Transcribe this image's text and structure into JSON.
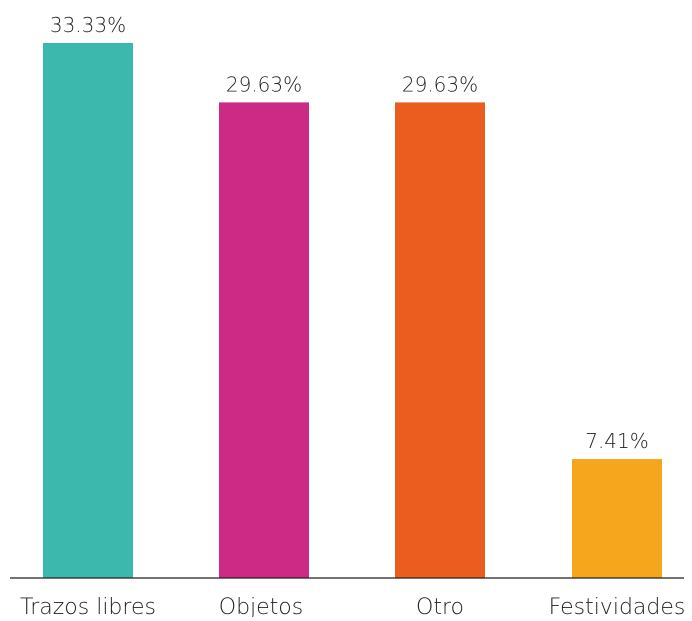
{
  "chart_data": {
    "type": "bar",
    "categories": [
      "Trazos libres",
      "Objetos",
      "Otro",
      "Festividades"
    ],
    "values": [
      33.33,
      29.63,
      29.63,
      7.41
    ],
    "value_labels": [
      "33.33%",
      "29.63%",
      "29.63%",
      "7.41%"
    ],
    "colors": [
      "#3cb8ad",
      "#cd2a85",
      "#eb5c1f",
      "#f5a61c"
    ],
    "ylim": [
      0,
      33.33
    ],
    "grid": false,
    "legend": "none",
    "title": "",
    "xlabel": "",
    "ylabel": ""
  }
}
